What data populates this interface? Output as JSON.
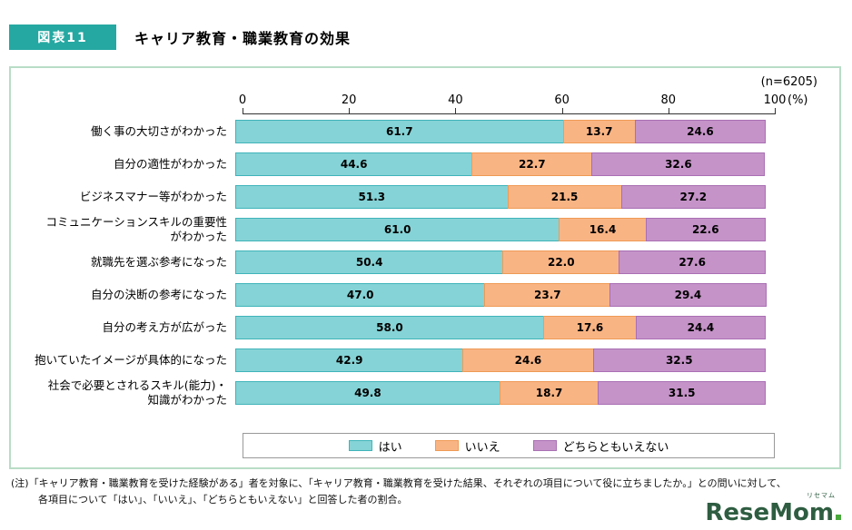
{
  "header": {
    "badge": "図表11",
    "title": "キャリア教育・職業教育の効果"
  },
  "chart_data": {
    "type": "bar",
    "orientation": "horizontal",
    "stacked": true,
    "title": "キャリア教育・職業教育の効果",
    "n_label": "(n=6205)",
    "axis": {
      "ticks": [
        0,
        20,
        40,
        60,
        80,
        100
      ],
      "unit": "(%)",
      "range": [
        0,
        100
      ]
    },
    "legend_position": "bottom",
    "categories": [
      "働く事の大切さがわかった",
      "自分の適性がわかった",
      "ビジネスマナー等がわかった",
      "コミュニケーションスキルの重要性\nがわかった",
      "就職先を選ぶ参考になった",
      "自分の決断の参考になった",
      "自分の考え方が広がった",
      "抱いていたイメージが具体的になった",
      "社会で必要とされるスキル(能力)・\n知識がわかった"
    ],
    "series": [
      {
        "key": "yes",
        "name": "はい",
        "color": "#85d3d6",
        "border": "#3fb4ba",
        "values": [
          61.7,
          44.6,
          51.3,
          61.0,
          50.4,
          47.0,
          58.0,
          42.9,
          49.8
        ]
      },
      {
        "key": "no",
        "name": "いいえ",
        "color": "#f9b484",
        "border": "#ef9a55",
        "values": [
          13.7,
          22.7,
          21.5,
          16.4,
          22.0,
          23.7,
          17.6,
          24.6,
          18.7
        ]
      },
      {
        "key": "neither",
        "name": "どちらともいえない",
        "color": "#c593c8",
        "border": "#a96fb3",
        "values": [
          24.6,
          32.6,
          27.2,
          22.6,
          27.6,
          29.4,
          24.4,
          32.5,
          31.5
        ]
      }
    ]
  },
  "note": {
    "line1": "(注)「キャリア教育・職業教育を受けた経験がある」者を対象に、「キャリア教育・職業教育を受けた結果、それぞれの項目について役に立ちましたか。」との問いに対して、",
    "line2": "各項目について「はい」、「いいえ」、「どちらともいえない」と回答した者の割合。"
  },
  "logo": {
    "text": "ReseMom",
    "ruby": "リセマム"
  }
}
